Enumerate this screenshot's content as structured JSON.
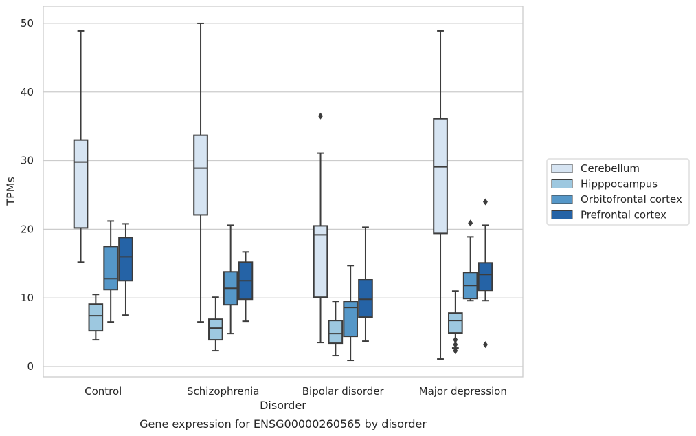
{
  "chart_data": {
    "type": "box",
    "title": "",
    "caption": "Gene expression for ENSG00000260565 by disorder",
    "xlabel": "Disorder",
    "ylabel": "TPMs",
    "categories": [
      "Control",
      "Schizophrenia",
      "Bipolar disorder",
      "Major depression"
    ],
    "yticks": [
      0,
      10,
      20,
      30,
      40,
      50
    ],
    "ylim": [
      -1.5,
      52.5
    ],
    "grid": true,
    "legend_position": "right",
    "series": [
      {
        "name": "Cerebellum",
        "color": "#d6e4f2",
        "boxes": [
          {
            "whislo": 15.2,
            "q1": 20.2,
            "med": 29.8,
            "q3": 33.0,
            "whishi": 48.9,
            "fliers": []
          },
          {
            "whislo": 6.5,
            "q1": 22.1,
            "med": 28.9,
            "q3": 33.7,
            "whishi": 50.0,
            "fliers": []
          },
          {
            "whislo": 3.5,
            "q1": 10.1,
            "med": 19.2,
            "q3": 20.5,
            "whishi": 31.1,
            "fliers": [
              36.5
            ]
          },
          {
            "whislo": 1.1,
            "q1": 19.4,
            "med": 29.1,
            "q3": 36.1,
            "whishi": 48.9,
            "fliers": []
          }
        ]
      },
      {
        "name": "Hipppocampus",
        "color": "#9dc8e0",
        "boxes": [
          {
            "whislo": 3.9,
            "q1": 5.2,
            "med": 7.4,
            "q3": 9.1,
            "whishi": 10.5,
            "fliers": []
          },
          {
            "whislo": 2.3,
            "q1": 3.9,
            "med": 5.6,
            "q3": 6.9,
            "whishi": 10.1,
            "fliers": []
          },
          {
            "whislo": 1.6,
            "q1": 3.4,
            "med": 4.8,
            "q3": 6.7,
            "whishi": 9.5,
            "fliers": []
          },
          {
            "whislo": 2.7,
            "q1": 4.9,
            "med": 6.7,
            "q3": 7.8,
            "whishi": 11.0,
            "fliers": [
              2.3,
              3.2,
              3.9
            ]
          }
        ]
      },
      {
        "name": "Orbitofrontal cortex",
        "color": "#5597c8",
        "boxes": [
          {
            "whislo": 6.5,
            "q1": 11.2,
            "med": 12.8,
            "q3": 17.5,
            "whishi": 21.2,
            "fliers": []
          },
          {
            "whislo": 4.8,
            "q1": 9.0,
            "med": 11.4,
            "q3": 13.8,
            "whishi": 20.6,
            "fliers": []
          },
          {
            "whislo": 0.9,
            "q1": 4.4,
            "med": 8.6,
            "q3": 9.5,
            "whishi": 14.7,
            "fliers": []
          },
          {
            "whislo": 9.6,
            "q1": 9.9,
            "med": 11.8,
            "q3": 13.7,
            "whishi": 18.9,
            "fliers": [
              20.9
            ]
          }
        ]
      },
      {
        "name": "Prefrontal cortex",
        "color": "#2563a6",
        "boxes": [
          {
            "whislo": 7.5,
            "q1": 12.5,
            "med": 16.0,
            "q3": 18.8,
            "whishi": 20.8,
            "fliers": []
          },
          {
            "whislo": 6.6,
            "q1": 9.8,
            "med": 12.5,
            "q3": 15.2,
            "whishi": 16.7,
            "fliers": []
          },
          {
            "whislo": 3.7,
            "q1": 7.2,
            "med": 9.8,
            "q3": 12.7,
            "whishi": 20.3,
            "fliers": []
          },
          {
            "whislo": 9.6,
            "q1": 11.1,
            "med": 13.4,
            "q3": 15.1,
            "whishi": 20.6,
            "fliers": [
              24.0,
              3.2
            ]
          }
        ]
      }
    ]
  }
}
